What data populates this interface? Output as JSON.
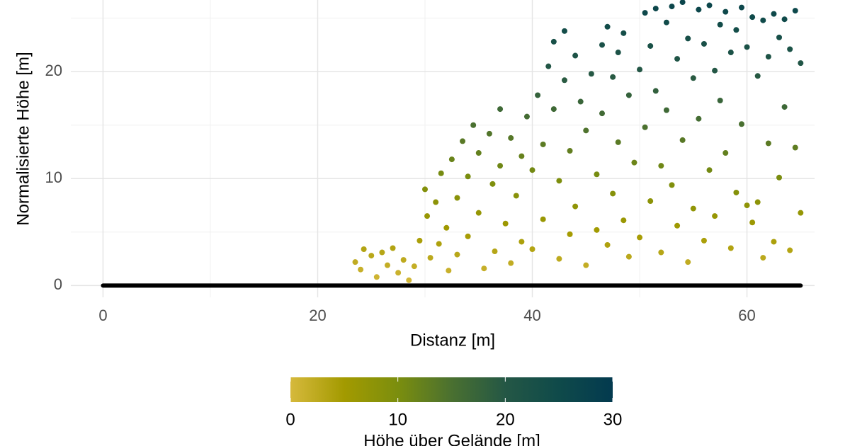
{
  "chart_data": {
    "type": "scatter",
    "x_label": "Distanz [m]",
    "y_label": "Normalisierte Höhe [m]",
    "xlim": [
      -3,
      66.3
    ],
    "ylim": [
      -1.1,
      26.7
    ],
    "xticks": [
      0,
      20,
      40,
      60
    ],
    "yticks": [
      0,
      10,
      20
    ],
    "x_minor_ticks": [
      10,
      30,
      50
    ],
    "y_minor_ticks": [
      5,
      15,
      25
    ],
    "grid": true,
    "colorscale": [
      "#d6b93c",
      "#a39a00",
      "#7b8e0e",
      "#4a7030",
      "#245745",
      "#0f4a4a",
      "#033a4f"
    ],
    "series": [
      {
        "color_by": "values",
        "x": [
          23.5,
          24,
          24.3,
          25,
          25.5,
          26,
          26.5,
          27,
          27.5,
          28,
          28.5,
          29,
          29.5,
          30,
          30.2,
          30.5,
          31,
          31.3,
          31.5,
          32,
          32.2,
          32.5,
          33,
          33,
          33.5,
          34,
          34,
          34.5,
          35,
          35,
          35.5,
          36,
          36.3,
          36.5,
          37,
          37,
          37.5,
          38,
          38,
          38.5,
          39,
          39,
          39.5,
          40,
          40,
          40.5,
          41,
          41,
          41.5,
          42,
          42,
          42.5,
          42.5,
          43,
          43,
          43.5,
          43.5,
          44,
          44,
          44.5,
          45,
          45,
          45.5,
          46,
          46,
          46.5,
          46.5,
          47,
          47,
          47.5,
          47.5,
          48,
          48,
          48.5,
          48.5,
          49,
          49,
          49.5,
          50,
          50,
          50.5,
          50.5,
          51,
          51,
          51.5,
          51.5,
          52,
          52,
          52.5,
          52.5,
          53,
          53,
          53.5,
          53.5,
          54,
          54,
          54.5,
          54.5,
          55,
          55,
          55.5,
          55.5,
          56,
          56,
          56.5,
          56.5,
          57,
          57,
          57.5,
          57.5,
          58,
          58,
          58.5,
          58.5,
          59,
          59,
          59.5,
          59.5,
          60,
          60,
          60.5,
          60.5,
          61,
          61,
          61.5,
          61.5,
          62,
          62,
          62.5,
          62.5,
          63,
          63,
          63.5,
          63.5,
          64,
          64,
          64.5,
          64.5,
          65,
          65
        ],
        "values": [
          2.2,
          1.5,
          3.4,
          2.8,
          0.8,
          3.1,
          1.9,
          3.5,
          1.2,
          2.4,
          0.5,
          1.8,
          4.2,
          9,
          6.5,
          2.6,
          7.8,
          3.9,
          10.5,
          5.4,
          1.4,
          11.8,
          8.2,
          2.9,
          13.5,
          10.2,
          4.6,
          15,
          12.4,
          6.8,
          1.6,
          14.2,
          9.5,
          3.2,
          16.5,
          11.2,
          5.8,
          13.8,
          2.1,
          8.4,
          12.1,
          4.1,
          15.8,
          10.8,
          3.4,
          17.8,
          13.2,
          6.2,
          20.5,
          22.8,
          16.5,
          9.8,
          2.5,
          23.8,
          19.2,
          12.6,
          4.8,
          21.5,
          7.4,
          17.2,
          14.5,
          1.9,
          19.8,
          10.4,
          5.2,
          22.5,
          16.1,
          24.2,
          3.8,
          19.5,
          8.6,
          21.8,
          13.4,
          23.6,
          6.1,
          17.8,
          2.7,
          11.5,
          20.2,
          4.5,
          25.5,
          14.8,
          22.4,
          7.9,
          25.9,
          18.2,
          11.2,
          3.1,
          24.6,
          16.4,
          26.1,
          9.4,
          21.2,
          5.6,
          26.5,
          13.6,
          23.1,
          2.2,
          19.4,
          7.2,
          25.8,
          15.6,
          22.6,
          4.2,
          26.2,
          10.8,
          20.1,
          6.5,
          24.4,
          17.3,
          25.6,
          12.4,
          21.8,
          3.5,
          23.9,
          8.7,
          26,
          15.1,
          22.3,
          7.5,
          25.1,
          5.9,
          19.6,
          7.8,
          24.8,
          2.6,
          21.4,
          13.3,
          25.4,
          4.1,
          23.2,
          10.1,
          24.9,
          16.7,
          22.1,
          3.3,
          25.7,
          12.9,
          20.8,
          6.8
        ]
      },
      {
        "style": "line",
        "color": "#000000",
        "x": [
          0,
          65
        ],
        "values": [
          0,
          0
        ]
      }
    ],
    "colorbar": {
      "title": "Höhe über Gelände [m]",
      "lim": [
        0,
        30
      ],
      "ticks": [
        0,
        10,
        20,
        30
      ]
    }
  }
}
